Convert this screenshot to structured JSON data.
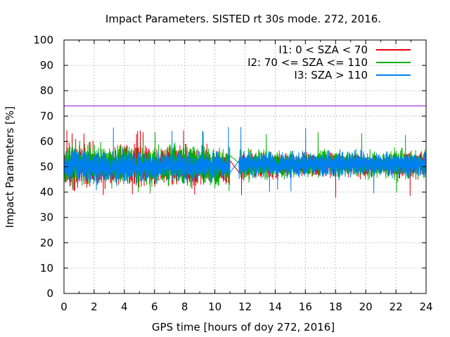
{
  "chart_data": {
    "type": "line",
    "title": "Impact Parameters. SISTED rt 30s mode. 272, 2016.",
    "xlabel": "GPS time [hours of doy 272, 2016]",
    "ylabel": "Impact Parameters [%]",
    "xlim": [
      0,
      24
    ],
    "ylim": [
      0,
      100
    ],
    "x_ticks": [
      0,
      2,
      4,
      6,
      8,
      10,
      12,
      14,
      16,
      18,
      20,
      22,
      24
    ],
    "y_ticks": [
      0,
      10,
      20,
      30,
      40,
      50,
      60,
      70,
      80,
      90,
      100
    ],
    "grid": true,
    "legend_position": "top-right",
    "data_gap": [
      11.0,
      11.6
    ],
    "series": [
      {
        "name": "I1: 0 < SZA < 70",
        "color": "#e8000b",
        "x": [
          0,
          1,
          2,
          3,
          4,
          5,
          6,
          7,
          8,
          9,
          10,
          11,
          12,
          13,
          14,
          15,
          16,
          17,
          18,
          19,
          20,
          21,
          22,
          23,
          24
        ],
        "mean": [
          50,
          51,
          50,
          50,
          51,
          50,
          50,
          51,
          50,
          50,
          51,
          50,
          51,
          51,
          50,
          51,
          51,
          50,
          51,
          51,
          50,
          51,
          50,
          51,
          51
        ],
        "spread": [
          9,
          10,
          9,
          9,
          9,
          10,
          9,
          9,
          10,
          9,
          9,
          8,
          6,
          6,
          5,
          5,
          5,
          5,
          5,
          5,
          5,
          5,
          6,
          6,
          6
        ],
        "min": 37.5,
        "max": 64.5
      },
      {
        "name": "I2: 70 <= SZA <= 110",
        "color": "#00b000",
        "x": [
          0,
          1,
          2,
          3,
          4,
          5,
          6,
          7,
          8,
          9,
          10,
          11,
          12,
          13,
          14,
          15,
          16,
          17,
          18,
          19,
          20,
          21,
          22,
          23,
          24
        ],
        "mean": [
          51,
          51,
          51,
          50,
          51,
          51,
          50,
          51,
          51,
          51,
          50,
          50,
          51,
          51,
          51,
          51,
          51,
          51,
          51,
          51,
          51,
          51,
          51,
          51,
          51
        ],
        "spread": [
          10,
          10,
          10,
          9,
          9,
          9,
          9,
          9,
          9,
          9,
          9,
          9,
          7,
          7,
          6,
          6,
          6,
          6,
          6,
          6,
          6,
          6,
          7,
          7,
          7
        ],
        "min": 38.5,
        "max": 64.5
      },
      {
        "name": "I3: SZA > 110",
        "color": "#0080f0",
        "x": [
          0,
          1,
          2,
          3,
          4,
          5,
          6,
          7,
          8,
          9,
          10,
          11,
          12,
          13,
          14,
          15,
          16,
          17,
          18,
          19,
          20,
          21,
          22,
          23,
          24
        ],
        "mean": [
          50,
          50,
          50,
          50,
          50,
          50,
          50,
          50,
          50,
          50,
          50,
          50,
          51,
          51,
          51,
          51,
          51,
          51,
          51,
          51,
          51,
          51,
          51,
          51,
          51
        ],
        "spread": [
          8,
          8,
          8,
          8,
          7,
          7,
          7,
          7,
          7,
          7,
          7,
          7,
          6,
          6,
          6,
          6,
          6,
          6,
          6,
          6,
          6,
          6,
          6,
          6,
          6
        ],
        "min": 39,
        "max": 66
      }
    ],
    "reference_lines": [
      {
        "name": "threshold",
        "y": 74,
        "color": "#9400d3"
      }
    ]
  }
}
